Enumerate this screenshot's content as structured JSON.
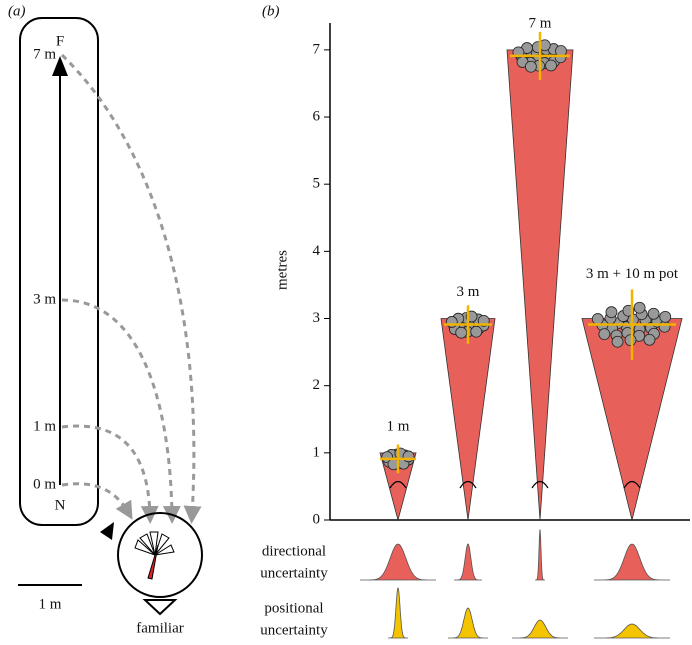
{
  "panel_a": {
    "label": "(a)",
    "feeder": "F",
    "nest": "N",
    "distances": [
      "7 m",
      "3 m",
      "1 m",
      "0 m"
    ],
    "scale_bar": "1 m",
    "site": "familiar"
  },
  "chart_data": {
    "type": "cone",
    "panel_label": "(b)",
    "y_label": "metres",
    "categories": [
      "1 m",
      "3 m",
      "7 m",
      "3 m + 10 m pot"
    ],
    "values": [
      1,
      3,
      7,
      3
    ],
    "color": "#e8605a",
    "ylim": [
      0,
      7.4
    ],
    "yticks": [
      0,
      1,
      2,
      3,
      4,
      5,
      6,
      7
    ],
    "row_labels": [
      [
        "directional",
        "uncertainty"
      ],
      [
        "positional",
        "uncertainty"
      ]
    ]
  }
}
